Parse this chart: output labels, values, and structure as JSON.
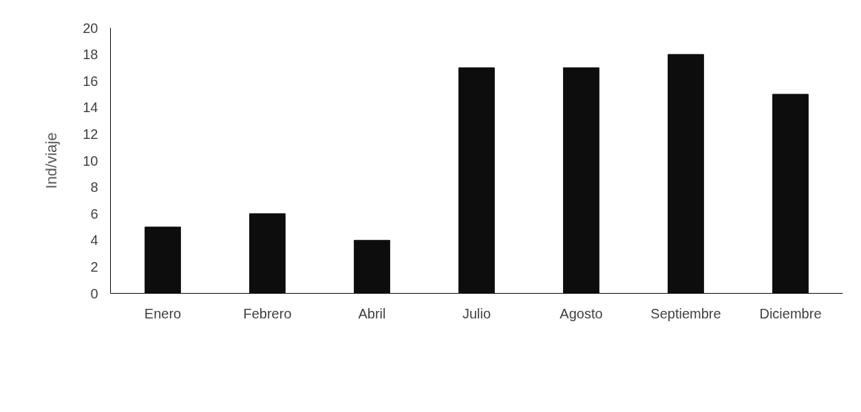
{
  "chart_data": {
    "type": "bar",
    "ylabel": "Ind/viaje",
    "categories": [
      "Enero",
      "Febrero",
      "Abril",
      "Julio",
      "Agosto",
      "Septiembre",
      "Diciembre"
    ],
    "values": [
      5,
      6,
      4,
      17,
      17,
      18,
      15
    ],
    "color": "#0d0d0d",
    "ylim": [
      0,
      20
    ],
    "yticks": [
      0,
      2,
      4,
      6,
      8,
      10,
      12,
      14,
      16,
      18,
      20
    ],
    "grid": false
  }
}
